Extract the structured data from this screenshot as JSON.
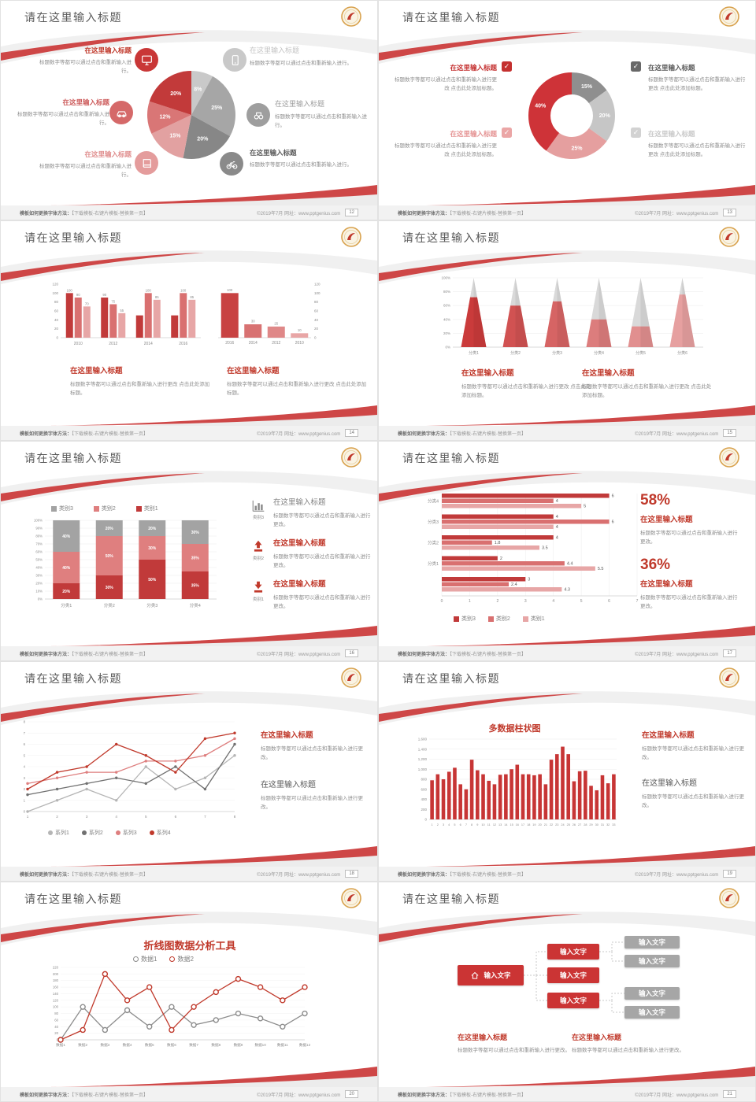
{
  "common": {
    "slide_title": "请在这里输入标题",
    "ph_title": "在这里输入标题",
    "body1": "标题数字等都可以通过点击和重新输入进行。",
    "body2": "标题数字等都可以通过点击和重新输入进行更改。",
    "body3": "标题数字等都可以通过点击和重新输入进行更改 点击此处添加标题。",
    "footer_left_bold": "模板如何更换字体方法：",
    "footer_left_rest": "【下载模板-右键片模板-替换第一页】",
    "footer_right": "©2019年7月 网址：www.pptgenius.com",
    "accent_color": "#c0392b"
  },
  "slides": {
    "pages": [
      "12",
      "13",
      "14",
      "15",
      "16",
      "17",
      "18",
      "19",
      "20",
      "21"
    ]
  },
  "s5": {
    "icon_labels": [
      "类别3",
      "类别2",
      "类别1"
    ]
  },
  "s6": {
    "stat1": "58%",
    "stat2": "36%"
  },
  "diagram": {
    "root": "输入文字",
    "mid": [
      "输入文字",
      "输入文字",
      "输入文字"
    ],
    "leaf": [
      "输入文字",
      "输入文字",
      "输入文字",
      "输入文字"
    ]
  },
  "chart_data": [
    {
      "id": "pie1",
      "type": "pie",
      "title": "",
      "labels": [
        "8%",
        "25%",
        "20%",
        "15%",
        "12%",
        "20%"
      ],
      "values": [
        8,
        25,
        20,
        15,
        12,
        20
      ],
      "colors": [
        "#c9c9c9",
        "#a6a6a6",
        "#878787",
        "#e2a1a1",
        "#d97676",
        "#c23a3a"
      ]
    },
    {
      "id": "donut1",
      "type": "pie",
      "subtype": "donut",
      "labels": [
        "15%",
        "20%",
        "25%",
        "40%"
      ],
      "values": [
        15,
        20,
        25,
        40
      ],
      "colors": [
        "#8f8f8f",
        "#c6c6c6",
        "#e59f9f",
        "#ce3338"
      ]
    },
    {
      "id": "barsA",
      "type": "bar",
      "subtype": "grouped",
      "categories": [
        "2010",
        "2012",
        "2014",
        "2016"
      ],
      "ymax": 120,
      "yticks": [
        0,
        20,
        40,
        60,
        80,
        100,
        120
      ],
      "series": [
        {
          "color": "#c13a3a",
          "values": [
            100,
            90,
            50,
            50
          ],
          "labels": [
            "100",
            "90",
            "",
            ""
          ]
        },
        {
          "color": "#d97070",
          "values": [
            90,
            75,
            100,
            100
          ],
          "labels": [
            "90",
            "75",
            "100",
            "100"
          ]
        },
        {
          "color": "#e7a6a6",
          "values": [
            70,
            55,
            85,
            85
          ],
          "labels": [
            "70",
            "55",
            "85",
            "85"
          ]
        }
      ]
    },
    {
      "id": "barsB",
      "type": "bar",
      "subtype": "simple",
      "axis": "right",
      "categories": [
        "2016",
        "2014",
        "2012",
        "2010"
      ],
      "ymax": 120,
      "yticks": [
        0,
        20,
        40,
        60,
        80,
        100,
        120
      ],
      "values": [
        100,
        30,
        25,
        10
      ],
      "labels": [
        "100",
        "30",
        "25",
        "10"
      ],
      "colors": [
        "#c84242",
        "#d87272",
        "#df8888",
        "#e8a6a6"
      ]
    },
    {
      "id": "pyr",
      "type": "pyramid",
      "categories": [
        "分类1",
        "分类2",
        "分类3",
        "分类4",
        "分类5",
        "分类6"
      ],
      "fills": [
        72,
        60,
        66,
        40,
        30,
        76
      ],
      "colors": [
        "#ca3b3b",
        "#d15252",
        "#d66464",
        "#dc7d7d",
        "#e18f8f",
        "#e6a0a0"
      ],
      "top_color": "#d9d9d9",
      "yticks": [
        "0%",
        "20%",
        "40%",
        "60%",
        "80%",
        "100%"
      ]
    },
    {
      "id": "stk",
      "type": "bar",
      "subtype": "stacked",
      "categories": [
        "分类1",
        "分类2",
        "分类3",
        "分类4"
      ],
      "yticks": [
        "0%",
        "10%",
        "20%",
        "30%",
        "40%",
        "50%",
        "60%",
        "70%",
        "80%",
        "90%",
        "100%"
      ],
      "series": [
        {
          "name": "类别1",
          "color": "#c13a3a",
          "values": [
            20,
            30,
            50,
            35
          ]
        },
        {
          "name": "类别2",
          "color": "#df7f7f",
          "values": [
            40,
            50,
            30,
            35
          ]
        },
        {
          "name": "类别3",
          "color": "#a3a3a3",
          "values": [
            40,
            20,
            20,
            30
          ]
        }
      ],
      "legend_items": [
        {
          "label": "类别3",
          "color": "#a3a3a3"
        },
        {
          "label": "类别2",
          "color": "#df7f7f"
        },
        {
          "label": "类别1",
          "color": "#c13a3a"
        }
      ]
    },
    {
      "id": "hbar",
      "type": "bar",
      "subtype": "horizontal",
      "xmax": 7,
      "xticks": [
        0,
        1,
        2,
        3,
        4,
        5,
        6,
        7
      ],
      "series_colors": [
        "#c13a3a",
        "#d97070",
        "#e7a6a6"
      ],
      "groups": [
        {
          "label": "分类4",
          "values": [
            6,
            4,
            5
          ]
        },
        {
          "label": "分类3",
          "values": [
            4,
            6,
            4
          ]
        },
        {
          "label": "分类2",
          "values": [
            4,
            1.8,
            3.5
          ]
        },
        {
          "label": "分类1",
          "values": [
            2,
            4.4,
            5.5
          ]
        },
        {
          "label": "",
          "values": [
            3,
            2.4,
            4.3
          ]
        }
      ],
      "legend_items": [
        {
          "label": "类别3",
          "color": "#c13a3a"
        },
        {
          "label": "类别2",
          "color": "#d97070"
        },
        {
          "label": "类别1",
          "color": "#e7a6a6"
        }
      ]
    },
    {
      "id": "ln4",
      "type": "line",
      "x": [
        "1",
        "2",
        "3",
        "4",
        "5",
        "6",
        "7",
        "8"
      ],
      "ymax": 8,
      "yticks": [
        0,
        1,
        2,
        3,
        4,
        5,
        6,
        7,
        8
      ],
      "marker": "dot",
      "series": [
        {
          "name": "系列1",
          "color": "#b5b5b5",
          "values": [
            0,
            1,
            2,
            1,
            4,
            2,
            3,
            5
          ]
        },
        {
          "name": "系列2",
          "color": "#707070",
          "values": [
            1.5,
            2,
            2.5,
            3,
            2.5,
            4,
            2,
            6
          ]
        },
        {
          "name": "系列3",
          "color": "#de7f7f",
          "values": [
            2.5,
            3,
            3.5,
            3.5,
            4.5,
            4.5,
            5,
            6.5
          ]
        },
        {
          "name": "系列4",
          "color": "#c0392b",
          "values": [
            2,
            3.5,
            4,
            6,
            5,
            3.5,
            6.5,
            7
          ]
        }
      ]
    },
    {
      "id": "b33",
      "type": "bar",
      "subtype": "simple",
      "title": "多数据柱状图",
      "ymax": 1600,
      "yticks": [
        "0",
        "200",
        "400",
        "600",
        "800",
        "1,000",
        "1,200",
        "1,400",
        "1,600"
      ],
      "categories": [
        "1",
        "2",
        "3",
        "4",
        "5",
        "6",
        "7",
        "8",
        "9",
        "10",
        "11",
        "12",
        "13",
        "14",
        "15",
        "16",
        "17",
        "18",
        "19",
        "20",
        "21",
        "22",
        "23",
        "24",
        "25",
        "26",
        "27",
        "28",
        "29",
        "30",
        "31",
        "32",
        "33"
      ],
      "values": [
        780,
        900,
        800,
        950,
        1030,
        700,
        600,
        1190,
        980,
        900,
        770,
        700,
        890,
        900,
        1000,
        1090,
        900,
        900,
        880,
        900,
        700,
        1190,
        1300,
        1450,
        1300,
        760,
        960,
        970,
        670,
        580,
        880,
        720,
        900
      ],
      "color": "#c73535"
    },
    {
      "id": "ln2",
      "type": "line",
      "title": "折线图数据分析工具",
      "x": [
        "数据1",
        "数据2",
        "数据3",
        "数据4",
        "数据5",
        "数据6",
        "数据7",
        "数据8",
        "数据9",
        "数据10",
        "数据11",
        "数据12"
      ],
      "ymax": 220,
      "yticks": [
        0,
        20,
        40,
        60,
        80,
        100,
        120,
        140,
        160,
        180,
        200,
        220
      ],
      "marker": "ring",
      "series": [
        {
          "name": "数据1",
          "color": "#8c8c8c",
          "values": [
            0,
            100,
            30,
            90,
            40,
            100,
            45,
            60,
            80,
            65,
            40,
            80
          ]
        },
        {
          "name": "数据2",
          "color": "#c0392b",
          "values": [
            0,
            30,
            200,
            120,
            160,
            30,
            100,
            145,
            185,
            160,
            120,
            160
          ]
        }
      ]
    }
  ]
}
